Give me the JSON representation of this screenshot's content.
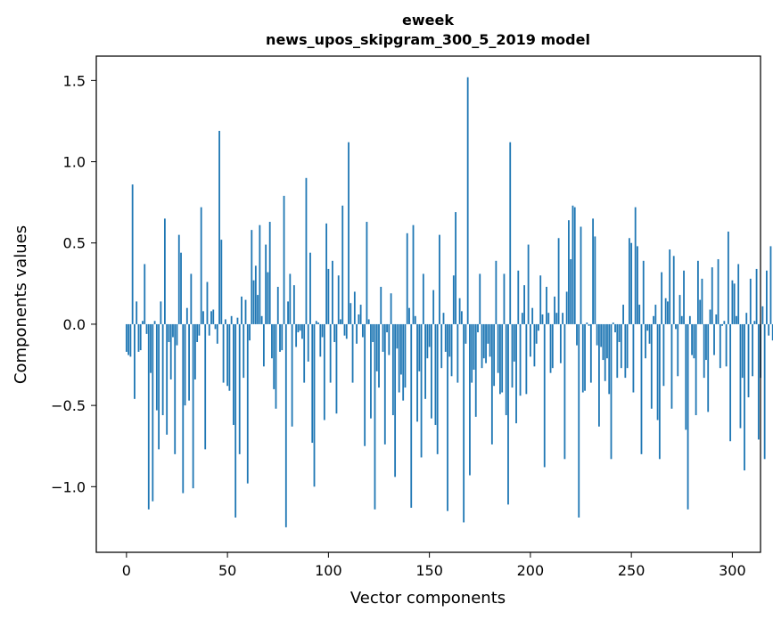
{
  "chart_data": {
    "type": "bar",
    "title_line1": "eweek",
    "title_line2": "news_upos_skipgram_300_5_2019 model",
    "xlabel": "Vector components",
    "ylabel": "Components values",
    "xlim": [
      -14.95,
      313.95
    ],
    "ylim": [
      -1.404,
      1.65
    ],
    "xticks": [
      0,
      50,
      100,
      150,
      200,
      250,
      300
    ],
    "xtick_labels": [
      "0",
      "50",
      "100",
      "150",
      "200",
      "250",
      "300"
    ],
    "yticks": [
      -1.0,
      -0.5,
      0.0,
      0.5,
      1.0,
      1.5
    ],
    "ytick_labels": [
      "−1.0",
      "−0.5",
      "0.0",
      "0.5",
      "1.0",
      "1.5"
    ],
    "bar_color": "#1f77b4",
    "values": [
      -0.17,
      -0.19,
      -0.2,
      0.86,
      -0.46,
      0.14,
      -0.17,
      -0.16,
      0.02,
      0.37,
      -0.06,
      -1.14,
      -0.3,
      -1.09,
      0.02,
      -0.53,
      -0.77,
      0.14,
      -0.56,
      0.65,
      -0.68,
      -0.11,
      -0.34,
      -0.08,
      -0.8,
      -0.13,
      0.55,
      0.44,
      -1.04,
      -0.5,
      0.1,
      -0.47,
      0.31,
      -1.01,
      -0.34,
      -0.11,
      -0.07,
      0.72,
      0.08,
      -0.77,
      0.26,
      -0.07,
      0.08,
      0.09,
      -0.03,
      -0.12,
      1.19,
      0.52,
      -0.36,
      0.03,
      -0.38,
      -0.41,
      0.05,
      -0.62,
      -1.19,
      0.04,
      -0.8,
      0.17,
      -0.33,
      0.15,
      -0.98,
      -0.1,
      0.58,
      0.27,
      0.36,
      0.18,
      0.61,
      0.05,
      -0.26,
      0.49,
      0.32,
      0.63,
      -0.21,
      -0.4,
      -0.52,
      0.23,
      -0.17,
      -0.16,
      0.79,
      -1.25,
      0.14,
      0.31,
      -0.63,
      0.24,
      -0.14,
      -0.05,
      -0.04,
      -0.09,
      -0.36,
      0.9,
      -0.23,
      0.44,
      -0.73,
      -1.0,
      0.02,
      0.01,
      -0.2,
      -0.08,
      -0.59,
      0.62,
      0.34,
      -0.36,
      0.39,
      -0.11,
      -0.55,
      0.3,
      0.03,
      0.73,
      -0.07,
      -0.09,
      1.12,
      0.13,
      -0.36,
      0.2,
      -0.12,
      0.06,
      0.12,
      -0.08,
      -0.75,
      0.63,
      0.03,
      -0.58,
      -0.11,
      -1.14,
      -0.29,
      -0.39,
      0.23,
      -0.17,
      -0.74,
      -0.05,
      -0.19,
      0.19,
      -0.56,
      -0.94,
      -0.15,
      -0.42,
      -0.31,
      -0.47,
      -0.39,
      0.56,
      0.1,
      -1.13,
      0.61,
      0.05,
      -0.6,
      -0.29,
      -0.82,
      0.31,
      -0.46,
      -0.21,
      -0.14,
      -0.58,
      0.21,
      -0.62,
      -0.8,
      0.55,
      -0.27,
      0.07,
      -0.17,
      -1.15,
      -0.2,
      -0.32,
      0.3,
      0.69,
      -0.36,
      0.16,
      0.08,
      -1.22,
      -0.12,
      1.52,
      -0.93,
      -0.36,
      -0.28,
      -0.57,
      -0.05,
      0.31,
      -0.27,
      -0.21,
      -0.24,
      -0.12,
      -0.2,
      -0.74,
      -0.38,
      0.39,
      -0.3,
      -0.43,
      -0.42,
      0.31,
      -0.56,
      -1.11,
      1.12,
      -0.39,
      -0.23,
      -0.61,
      0.33,
      -0.44,
      0.07,
      0.24,
      -0.43,
      0.49,
      -0.2,
      0.1,
      -0.26,
      -0.12,
      -0.04,
      0.3,
      0.06,
      -0.88,
      0.23,
      0.07,
      -0.3,
      -0.27,
      0.17,
      0.07,
      0.53,
      -0.24,
      0.07,
      -0.83,
      0.2,
      0.64,
      0.4,
      0.73,
      0.72,
      -0.13,
      -1.19,
      0.6,
      -0.42,
      -0.41,
      0.01,
      -0.01,
      -0.36,
      0.65,
      0.54,
      -0.13,
      -0.63,
      -0.14,
      -0.22,
      -0.35,
      -0.21,
      -0.43,
      -0.83,
      0.01,
      -0.05,
      -0.33,
      -0.11,
      -0.27,
      0.12,
      -0.33,
      -0.27,
      0.53,
      0.5,
      -0.42,
      0.72,
      0.48,
      0.12,
      -0.8,
      0.39,
      -0.21,
      -0.04,
      -0.12,
      -0.52,
      0.05,
      0.12,
      -0.59,
      -0.83,
      0.32,
      -0.38,
      0.16,
      0.14,
      0.46,
      -0.52,
      0.42,
      -0.03,
      -0.32,
      0.18,
      0.05,
      0.33,
      -0.65,
      -1.14,
      0.05,
      -0.19,
      -0.21,
      -0.56,
      0.39,
      0.15,
      0.28,
      -0.33,
      -0.22,
      -0.54,
      0.09,
      0.35,
      -0.19,
      0.06,
      0.4,
      -0.27,
      -0.01,
      0.02,
      -0.26,
      0.57,
      -0.72,
      0.27,
      0.25,
      0.05,
      0.37,
      -0.64,
      -0.33,
      -0.9,
      0.07,
      -0.45,
      0.28,
      -0.32,
      0.02,
      0.34,
      -0.71,
      -0.33,
      0.11,
      -0.83,
      0.33,
      -0.07,
      0.48,
      -0.1
    ]
  }
}
